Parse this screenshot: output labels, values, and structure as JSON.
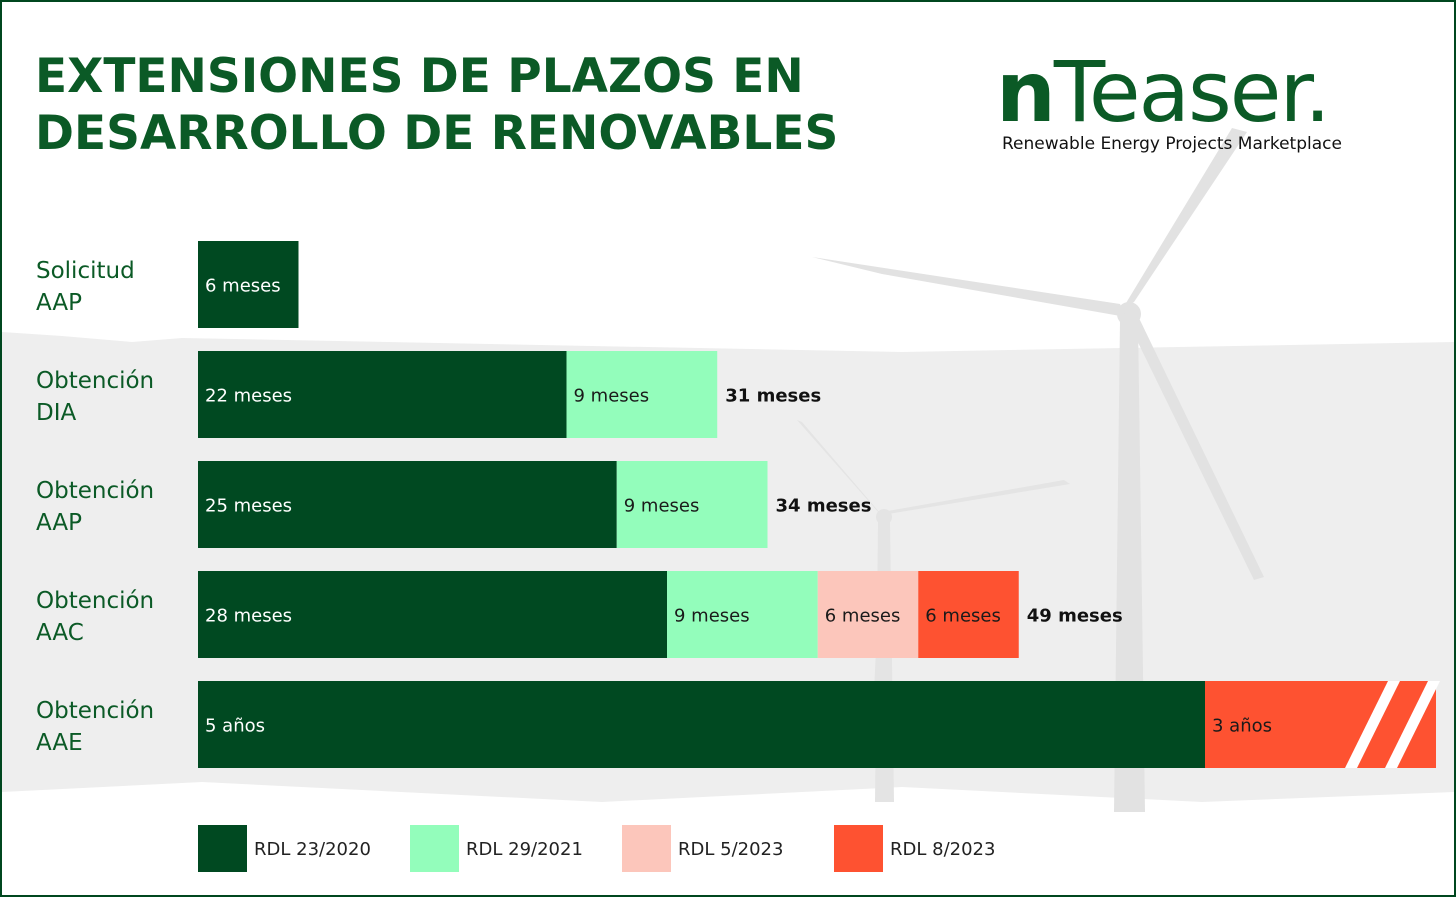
{
  "title": {
    "line1": "EXTENSIONES DE PLAZOS EN",
    "line2": "DESARROLLO DE RENOVABLES"
  },
  "logo": {
    "part1": "n",
    "part2": "Teaser.",
    "tagline": "Renewable Energy Projects Marketplace"
  },
  "colors": {
    "RDL 23/2020": "#004921",
    "RDL 29/2021": "#93fdbb",
    "RDL 5/2023": "#fcc6bb",
    "RDL 8/2023": "#fe5231",
    "label_color": "#0b5a26"
  },
  "chart_data": {
    "type": "bar",
    "orientation": "horizontal",
    "stacked": true,
    "unit": "meses",
    "categories": [
      [
        "Solicitud",
        "AAP"
      ],
      [
        "Obtención",
        "DIA"
      ],
      [
        "Obtención",
        "AAP"
      ],
      [
        "Obtención",
        "AAC"
      ],
      [
        "Obtención",
        "AAE"
      ]
    ],
    "series": [
      {
        "name": "RDL 23/2020",
        "values": [
          6,
          22,
          25,
          28,
          60
        ],
        "labels": [
          "6 meses",
          "22 meses",
          "25 meses",
          "28 meses",
          "5 años"
        ]
      },
      {
        "name": "RDL 29/2021",
        "values": [
          0,
          9,
          9,
          9,
          0
        ],
        "labels": [
          "",
          "9 meses",
          "9 meses",
          "9 meses",
          ""
        ]
      },
      {
        "name": "RDL 5/2023",
        "values": [
          0,
          0,
          0,
          6,
          0
        ],
        "labels": [
          "",
          "",
          "",
          "6 meses",
          ""
        ]
      },
      {
        "name": "RDL 8/2023",
        "values": [
          0,
          0,
          0,
          6,
          36
        ],
        "labels": [
          "",
          "",
          "",
          "6 meses",
          "3 años"
        ]
      }
    ],
    "totals": [
      "",
      "31 meses",
      "34 meses",
      "49 meses",
      ""
    ],
    "axis_break": [
      false,
      false,
      false,
      false,
      true
    ],
    "grid": false,
    "legend_position": "bottom"
  }
}
